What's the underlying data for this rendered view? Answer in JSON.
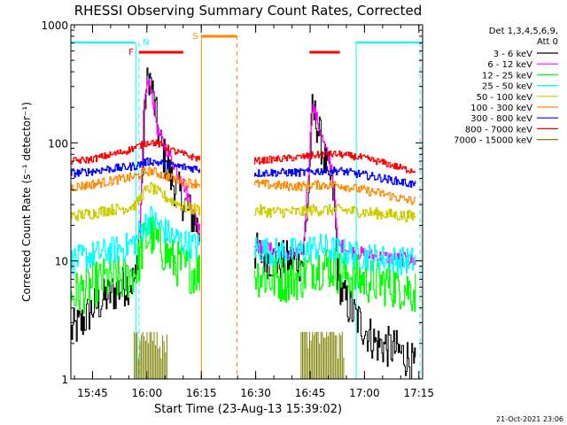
{
  "chart_data": {
    "type": "line",
    "title": "RHESSI Observing Summary Count Rates, Corrected",
    "xlabel": "Start Time (23-Aug-13 15:39:02)",
    "ylabel": "Corrected Count Rate (s⁻¹ detector⁻¹)",
    "y_scale": "log",
    "ylim": [
      1,
      1000
    ],
    "xlim_minutes": [
      0,
      97
    ],
    "y_ticks": [
      {
        "v": 1,
        "label": "1"
      },
      {
        "v": 10,
        "label": "10"
      },
      {
        "v": 100,
        "label": "100"
      },
      {
        "v": 1000,
        "label": "1000"
      }
    ],
    "x_ticks": [
      {
        "m": 5.97,
        "label": "15:45"
      },
      {
        "m": 20.97,
        "label": "16:00"
      },
      {
        "m": 35.97,
        "label": "16:15"
      },
      {
        "m": 50.97,
        "label": "16:30"
      },
      {
        "m": 65.97,
        "label": "16:45"
      },
      {
        "m": 80.97,
        "label": "17:00"
      },
      {
        "m": 95.97,
        "label": "17:15"
      }
    ],
    "legend_title": [
      "Det 1,3,4,5,6,9,",
      "Att 0"
    ],
    "legend_position": "right",
    "series": [
      {
        "name": "3 - 6 keV",
        "color": "#000000",
        "noise": 0.18,
        "points": [
          [
            0,
            2.5
          ],
          [
            3,
            3
          ],
          [
            6,
            4
          ],
          [
            10,
            5
          ],
          [
            14,
            6
          ],
          [
            18,
            7
          ],
          [
            19.5,
            40
          ],
          [
            20.5,
            250
          ],
          [
            21.5,
            380
          ],
          [
            22.5,
            260
          ],
          [
            24.5,
            100
          ],
          [
            27.5,
            50
          ],
          [
            31.5,
            30
          ],
          [
            35.5,
            18
          ],
          null,
          [
            50.5,
            12
          ],
          [
            53,
            11
          ],
          [
            56,
            10
          ],
          [
            60,
            10
          ],
          [
            64,
            10
          ],
          [
            65.5,
            40
          ],
          [
            66.5,
            180
          ],
          [
            67.5,
            160
          ],
          [
            70,
            70
          ],
          [
            71.5,
            50
          ],
          [
            72.5,
            35
          ],
          [
            73.5,
            8
          ],
          [
            75,
            5
          ],
          [
            78,
            3.5
          ],
          [
            84,
            2
          ],
          [
            89,
            1.8
          ],
          [
            93,
            1.5
          ],
          [
            95,
            1.2
          ]
        ]
      },
      {
        "name": "6 - 12 keV",
        "color": "#ff00ff",
        "noise": 0.06,
        "points": [
          [
            19,
            15
          ],
          [
            20,
            180
          ],
          [
            21,
            320
          ],
          [
            22,
            300
          ],
          [
            24,
            120
          ],
          [
            27,
            80
          ],
          [
            31,
            45
          ],
          [
            35.5,
            18
          ],
          null,
          [
            50.5,
            14
          ],
          [
            53,
            13
          ],
          [
            57,
            12
          ],
          [
            61,
            11
          ],
          [
            64,
            13
          ],
          [
            65.5,
            60
          ],
          [
            66.5,
            210
          ],
          [
            67.5,
            170
          ],
          [
            70,
            90
          ],
          [
            72,
            60
          ],
          [
            73.5,
            14
          ],
          [
            77,
            12
          ],
          [
            83,
            11
          ],
          [
            89,
            10.5
          ],
          [
            95,
            10
          ]
        ]
      },
      {
        "name": "12 - 25 keV",
        "color": "#00ff00",
        "noise": 0.2,
        "points": [
          [
            0,
            5
          ],
          [
            5,
            6
          ],
          [
            10,
            7
          ],
          [
            15,
            7
          ],
          [
            18,
            8.5
          ],
          [
            20,
            14
          ],
          [
            22,
            17
          ],
          [
            24,
            14
          ],
          [
            28,
            10
          ],
          [
            32,
            8.5
          ],
          [
            35.5,
            8
          ],
          null,
          [
            50.5,
            8
          ],
          [
            55,
            7
          ],
          [
            60,
            7
          ],
          [
            64,
            7.5
          ],
          [
            66,
            9
          ],
          [
            68,
            9
          ],
          [
            72,
            9
          ],
          [
            74,
            8
          ],
          [
            80,
            7
          ],
          [
            86,
            6.5
          ],
          [
            92,
            6
          ],
          [
            95,
            5.5
          ]
        ]
      },
      {
        "name": "25 - 50 keV",
        "color": "#00ffff",
        "noise": 0.12,
        "points": [
          [
            0,
            10
          ],
          [
            5,
            11
          ],
          [
            10,
            12
          ],
          [
            15,
            13
          ],
          [
            18,
            15
          ],
          [
            20,
            20
          ],
          [
            22,
            23
          ],
          [
            24,
            20
          ],
          [
            28,
            16
          ],
          [
            32,
            14
          ],
          [
            35.5,
            13
          ],
          null,
          [
            50.5,
            13
          ],
          [
            55,
            12
          ],
          [
            60,
            12
          ],
          [
            64,
            12
          ],
          [
            66,
            13
          ],
          [
            70,
            13
          ],
          [
            74,
            12
          ],
          [
            80,
            11
          ],
          [
            86,
            10.5
          ],
          [
            92,
            10
          ],
          [
            95,
            10
          ]
        ]
      },
      {
        "name": "50 - 100 keV",
        "color": "#cccc00",
        "noise": 0.05,
        "points": [
          [
            0,
            24
          ],
          [
            5,
            25
          ],
          [
            10,
            27
          ],
          [
            15,
            28
          ],
          [
            18,
            30
          ],
          [
            20,
            38
          ],
          [
            22,
            42
          ],
          [
            24,
            38
          ],
          [
            28,
            32
          ],
          [
            32,
            28
          ],
          [
            35.5,
            27
          ],
          null,
          [
            50.5,
            27
          ],
          [
            55,
            26
          ],
          [
            60,
            26
          ],
          [
            64,
            26
          ],
          [
            66,
            27
          ],
          [
            70,
            27
          ],
          [
            74,
            27
          ],
          [
            80,
            26
          ],
          [
            86,
            25
          ],
          [
            92,
            24
          ],
          [
            95,
            24
          ]
        ]
      },
      {
        "name": "100 - 300 keV",
        "color": "#ff8800",
        "noise": 0.04,
        "points": [
          [
            0,
            42
          ],
          [
            5,
            44
          ],
          [
            10,
            47
          ],
          [
            15,
            50
          ],
          [
            18,
            52
          ],
          [
            20,
            56
          ],
          [
            22,
            58
          ],
          [
            24,
            55
          ],
          [
            28,
            50
          ],
          [
            32,
            46
          ],
          [
            35.5,
            45
          ],
          null,
          [
            50.5,
            45
          ],
          [
            55,
            44
          ],
          [
            60,
            43
          ],
          [
            64,
            43
          ],
          [
            66,
            44
          ],
          [
            70,
            44
          ],
          [
            74,
            44
          ],
          [
            80,
            40
          ],
          [
            86,
            37
          ],
          [
            92,
            33
          ],
          [
            95,
            32
          ]
        ]
      },
      {
        "name": "300 - 800 keV",
        "color": "#0000ff",
        "noise": 0.035,
        "points": [
          [
            0,
            55
          ],
          [
            5,
            57
          ],
          [
            10,
            60
          ],
          [
            15,
            62
          ],
          [
            18,
            64
          ],
          [
            20,
            68
          ],
          [
            22,
            70
          ],
          [
            24,
            68
          ],
          [
            28,
            64
          ],
          [
            32,
            62
          ],
          [
            35.5,
            60
          ],
          null,
          [
            50.5,
            55
          ],
          [
            55,
            56
          ],
          [
            60,
            56
          ],
          [
            64,
            56
          ],
          [
            66,
            57
          ],
          [
            70,
            58
          ],
          [
            74,
            58
          ],
          [
            80,
            54
          ],
          [
            86,
            50
          ],
          [
            92,
            46
          ],
          [
            95,
            44
          ]
        ]
      },
      {
        "name": "800 - 7000 keV",
        "color": "#ff0000",
        "noise": 0.03,
        "points": [
          [
            0,
            70
          ],
          [
            5,
            72
          ],
          [
            10,
            78
          ],
          [
            15,
            85
          ],
          [
            18,
            92
          ],
          [
            20,
            98
          ],
          [
            22,
            102
          ],
          [
            24,
            98
          ],
          [
            28,
            86
          ],
          [
            32,
            78
          ],
          [
            35.5,
            73
          ],
          null,
          [
            50.5,
            70
          ],
          [
            55,
            72
          ],
          [
            60,
            74
          ],
          [
            64,
            76
          ],
          [
            66,
            78
          ],
          [
            70,
            80
          ],
          [
            74,
            80
          ],
          [
            80,
            75
          ],
          [
            86,
            68
          ],
          [
            92,
            60
          ],
          [
            95,
            58
          ]
        ]
      },
      {
        "name": "7000 - 15000 keV",
        "color": "#808000",
        "noise": 0.0,
        "bars": {
          "ranges": [
            [
              17.5,
              26.5
            ],
            [
              63.5,
              75.5
            ]
          ],
          "top": 2.5
        }
      }
    ],
    "annotations": {
      "night_markers": [
        {
          "label": "N",
          "start_m": 18.6,
          "end_m": 20.6
        }
      ],
      "saa_markers": [
        {
          "label": "S",
          "start_m": 36.0,
          "end_m": 45.8
        }
      ],
      "flare_markers": [
        {
          "label": "F",
          "start_m": 18.8,
          "end_m": 31.0
        },
        {
          "label": "",
          "start_m": 65.8,
          "end_m": 74.2
        }
      ],
      "cyan_top_bars": [
        [
          0,
          17.8
        ],
        [
          78.5,
          97
        ]
      ],
      "cyan_vlines_solid": [
        18.0,
        78.7
      ],
      "cyan_vlines_dashed": [
        18.8,
        96.3
      ],
      "orange_vlines_solid": [
        36.0
      ],
      "orange_vlines_dashed": [
        45.8
      ]
    }
  },
  "footer": {
    "date": "21-Oct-2021 23:06"
  }
}
